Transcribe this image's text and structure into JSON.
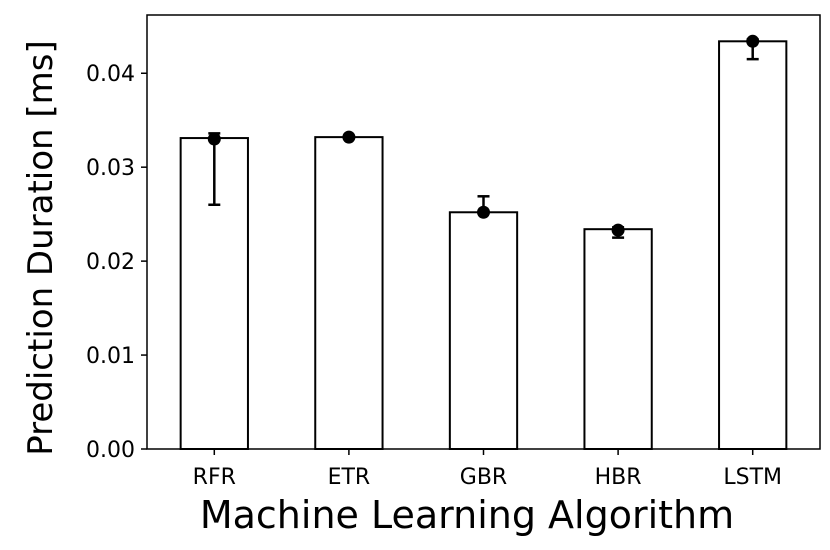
{
  "chart_data": {
    "type": "bar",
    "title": "",
    "xlabel": "Machine Learning Algorithm",
    "ylabel": "Prediction Duration [ms]",
    "categories": [
      "RFR",
      "ETR",
      "GBR",
      "HBR",
      "LSTM"
    ],
    "values": [
      0.0331,
      0.0332,
      0.0252,
      0.0234,
      0.0434
    ],
    "markers": [
      0.033,
      0.0332,
      0.0252,
      0.0233,
      0.0434
    ],
    "error_low": [
      0.026,
      0.0332,
      0.0252,
      0.0225,
      0.0415
    ],
    "error_high": [
      0.0336,
      0.0332,
      0.0269,
      0.0236,
      0.0436
    ],
    "ylim": [
      0,
      0.0462
    ],
    "yticks": [
      "0.00",
      "0.01",
      "0.02",
      "0.03",
      "0.04"
    ],
    "ytick_values": [
      0,
      0.01,
      0.02,
      0.03,
      0.04
    ],
    "grid": false,
    "legend": "none",
    "colors": {
      "bar_fill": "#ffffff",
      "bar_edge": "#000000",
      "marker": "#000000"
    }
  }
}
